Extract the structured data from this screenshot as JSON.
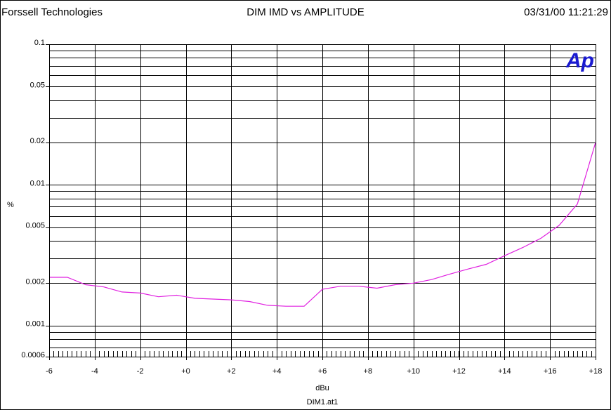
{
  "header": {
    "company": "Forssell Technologies",
    "title": "DIM IMD vs AMPLITUDE",
    "datetime": "03/31/00 11:21:29"
  },
  "logo_text": "Ap",
  "file_name": "DIM1.at1",
  "chart_data": {
    "type": "line",
    "title": "DIM IMD vs AMPLITUDE",
    "xlabel": "dBu",
    "ylabel": "%",
    "xlim": [
      -6,
      18
    ],
    "ylim": [
      0.0006,
      0.1
    ],
    "y_scale": "log",
    "grid": true,
    "x_ticks": [
      -6,
      -4,
      -2,
      0,
      2,
      4,
      6,
      8,
      10,
      12,
      14,
      16,
      18
    ],
    "x_tick_labels": [
      "-6",
      "-4",
      "-2",
      "+0",
      "+2",
      "+4",
      "+6",
      "+8",
      "+10",
      "+12",
      "+14",
      "+16",
      "+18"
    ],
    "y_ticks": [
      0.1,
      0.05,
      0.02,
      0.01,
      0.005,
      0.002,
      0.001,
      0.0006
    ],
    "y_tick_labels": [
      "0.1",
      "0.05",
      "0.02",
      "0.01",
      "0.005",
      "0.002",
      "0.001",
      "0.0006"
    ],
    "series": [
      {
        "color": "#e020e0",
        "x": [
          -6,
          -5.2,
          -4.4,
          -3.6,
          -2.8,
          -2.0,
          -1.2,
          -0.4,
          0.4,
          1.2,
          2.0,
          2.8,
          3.6,
          4.4,
          5.2,
          6.0,
          6.8,
          7.6,
          8.4,
          9.2,
          10.0,
          10.8,
          11.6,
          12.4,
          13.2,
          14.0,
          14.8,
          15.6,
          16.4,
          17.2,
          18.0
        ],
        "y": [
          0.0022,
          0.0022,
          0.00195,
          0.00188,
          0.00173,
          0.0017,
          0.0016,
          0.00164,
          0.00156,
          0.00154,
          0.00152,
          0.00148,
          0.00139,
          0.00137,
          0.00137,
          0.00181,
          0.0019,
          0.0019,
          0.00184,
          0.00195,
          0.002,
          0.00212,
          0.00232,
          0.00252,
          0.00272,
          0.00313,
          0.00358,
          0.00417,
          0.00515,
          0.0073,
          0.02
        ]
      }
    ]
  }
}
